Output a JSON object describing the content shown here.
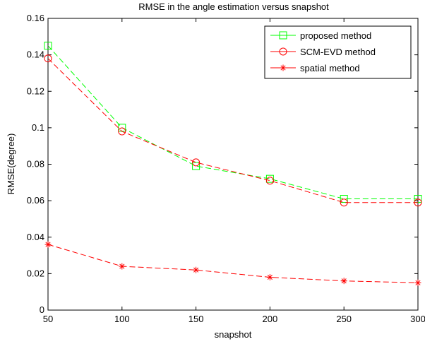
{
  "chart_data": {
    "type": "line",
    "title": "RMSE in the angle estimation versus snapshot",
    "xlabel": "snapshot",
    "ylabel": "RMSE(degree)",
    "xlim": [
      50,
      300
    ],
    "ylim": [
      0,
      0.16
    ],
    "xticks": [
      "50",
      "100",
      "150",
      "200",
      "250",
      "300"
    ],
    "yticks": [
      "0",
      "0.02",
      "0.04",
      "0.06",
      "0.08",
      "0.1",
      "0.12",
      "0.14",
      "0.16"
    ],
    "x": [
      50,
      100,
      150,
      200,
      250,
      300
    ],
    "grid": false,
    "legend_position": "top-right",
    "series": [
      {
        "name": "proposed method",
        "color": "#00ff00",
        "marker": "square",
        "line": "dashed",
        "values": [
          0.145,
          0.1,
          0.079,
          0.072,
          0.061,
          0.061
        ]
      },
      {
        "name": "SCM-EVD method",
        "color": "#ff0000",
        "marker": "circle",
        "line": "dashed",
        "values": [
          0.138,
          0.098,
          0.081,
          0.071,
          0.059,
          0.059
        ]
      },
      {
        "name": "spatial method",
        "color": "#ff0000",
        "marker": "star",
        "line": "dashed",
        "values": [
          0.036,
          0.024,
          0.022,
          0.018,
          0.016,
          0.015
        ]
      }
    ]
  }
}
